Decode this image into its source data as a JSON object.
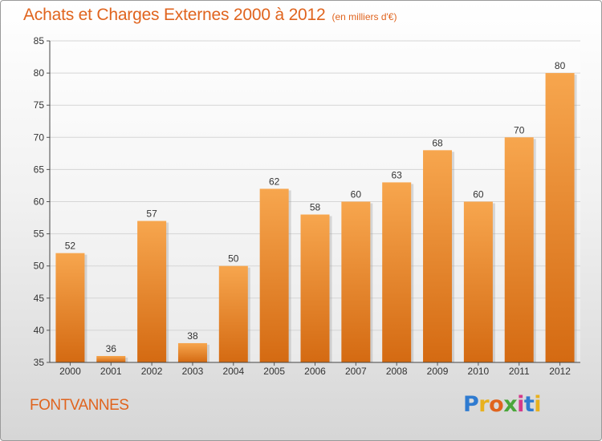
{
  "chart_data": {
    "type": "bar",
    "title": "Achats et Charges Externes 2000 à 2012",
    "subtitle": "(en milliers d'€)",
    "categories": [
      "2000",
      "2001",
      "2002",
      "2003",
      "2004",
      "2005",
      "2006",
      "2007",
      "2008",
      "2009",
      "2010",
      "2011",
      "2012"
    ],
    "values": [
      52,
      36,
      57,
      38,
      50,
      62,
      58,
      60,
      63,
      68,
      60,
      70,
      80
    ],
    "ylim": [
      35,
      85
    ],
    "yticks": [
      35,
      40,
      45,
      50,
      55,
      60,
      65,
      70,
      75,
      80,
      85
    ],
    "xlabel": "",
    "ylabel": "",
    "grid": true,
    "bar_color": "#f07d20"
  },
  "location_label": "FONTVANNES",
  "brand": {
    "name": "Proxiti",
    "letters": [
      {
        "ch": "P",
        "color": "#2f7bd0"
      },
      {
        "ch": "r",
        "color": "#e8b11e"
      },
      {
        "ch": "o",
        "color": "#e0641e"
      },
      {
        "ch": "x",
        "color": "#4aa63a"
      },
      {
        "ch": "i",
        "color": "#d43a8a"
      },
      {
        "ch": "t",
        "color": "#2f7bd0"
      },
      {
        "ch": "i",
        "color": "#e8b11e"
      }
    ]
  },
  "colors": {
    "title": "#e0641e",
    "bar": "#f07d20",
    "gridline": "#d5d5d5"
  }
}
